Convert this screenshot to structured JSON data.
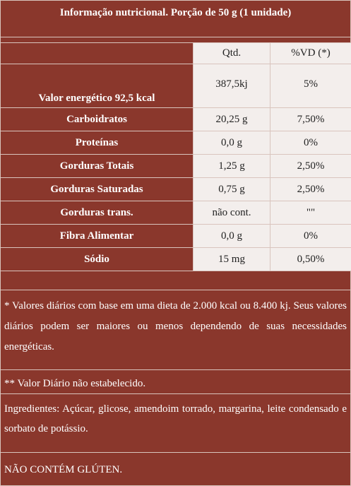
{
  "header": {
    "title": "Informação nutricional. Porção de 50 g (1 unidade)"
  },
  "table": {
    "headers": [
      "Qtd.",
      "%VD (*)"
    ],
    "rows": [
      [
        "Valor energético 92,5 kcal",
        "387,5kj",
        "5%"
      ],
      [
        "Carboidratos",
        "20,25 g",
        "7,50%"
      ],
      [
        "Proteínas",
        "0,0 g",
        "0%"
      ],
      [
        "Gorduras Totais",
        "1,25 g",
        "2,50%"
      ],
      [
        "Gorduras Saturadas",
        "0,75 g",
        "2,50%"
      ],
      [
        "Gorduras trans.",
        "não cont.",
        "\"\""
      ],
      [
        "Fibra Alimentar",
        "0,0 g",
        "0%"
      ],
      [
        "Sódio",
        "15 mg",
        "0,50%"
      ]
    ]
  },
  "notes": [
    "* Valores diários com base em uma dieta de 2.000 kcal ou 8.400 kj. Seus valores diários podem ser maiores ou menos dependendo de suas necessidades energéticas.",
    "** Valor Diário não estabelecido."
  ],
  "ingredients": "Ingredientes: Açúcar, glicose, amendoim torrado, margarina, leite condensado e sorbato de potássio.",
  "footer": "NÃO CONTÉM GLÚTEN."
}
